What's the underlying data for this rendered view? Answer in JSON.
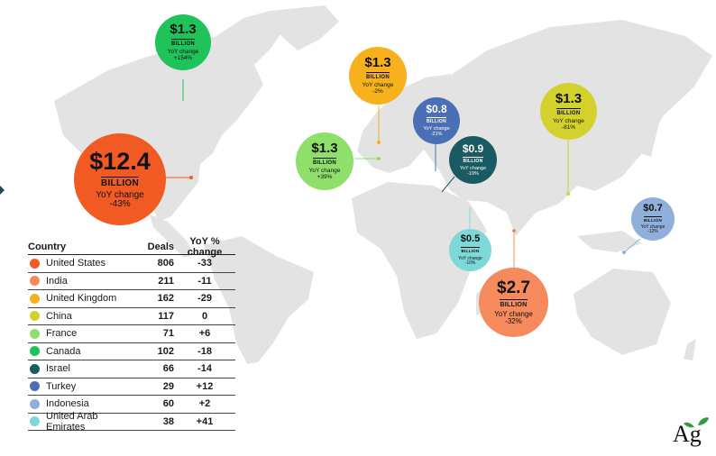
{
  "chart_data": {
    "type": "table",
    "columns": [
      "Country",
      "Deals",
      "YoY % change"
    ],
    "rows": [
      {
        "country": "United States",
        "deals": "806",
        "yoy": "-33",
        "color": "#f15a22"
      },
      {
        "country": "India",
        "deals": "211",
        "yoy": "-11",
        "color": "#f58a5c"
      },
      {
        "country": "United Kingdom",
        "deals": "162",
        "yoy": "-29",
        "color": "#f7b11d"
      },
      {
        "country": "China",
        "deals": "117",
        "yoy": "0",
        "color": "#d3d22d"
      },
      {
        "country": "France",
        "deals": "71",
        "yoy": "+6",
        "color": "#8ee06b"
      },
      {
        "country": "Canada",
        "deals": "102",
        "yoy": "-18",
        "color": "#1fc35a"
      },
      {
        "country": "Israel",
        "deals": "66",
        "yoy": "-14",
        "color": "#1a5a62"
      },
      {
        "country": "Turkey",
        "deals": "29",
        "yoy": "+12",
        "color": "#4a6fb5"
      },
      {
        "country": "Indonesia",
        "deals": "60",
        "yoy": "+2",
        "color": "#8fb0da"
      },
      {
        "country": "United Arab Emirates",
        "deals": "38",
        "yoy": "+41",
        "color": "#7fd8d8"
      }
    ],
    "bubbles": [
      {
        "country": "United States",
        "amount": "$12.4",
        "unit": "BILLION",
        "label": "YoY change",
        "change": "-43%"
      },
      {
        "country": "Canada",
        "amount": "$1.3",
        "unit": "BILLION",
        "label": "YoY change",
        "change": "+154%"
      },
      {
        "country": "France",
        "amount": "$1.3",
        "unit": "BILLION",
        "label": "YoY change",
        "change": "+39%"
      },
      {
        "country": "United Kingdom",
        "amount": "$1.3",
        "unit": "BILLION",
        "label": "YoY change",
        "change": "-2%"
      },
      {
        "country": "Turkey",
        "amount": "$0.8",
        "unit": "BILLION",
        "label": "YoY change",
        "change": "-21%"
      },
      {
        "country": "Israel",
        "amount": "$0.9",
        "unit": "BILLION",
        "label": "YoY change",
        "change": "-19%"
      },
      {
        "country": "China",
        "amount": "$1.3",
        "unit": "BILLION",
        "label": "YoY change",
        "change": "-81%"
      },
      {
        "country": "United Arab Emirates",
        "amount": "$0.5",
        "unit": "BILLION",
        "label": "YoY change",
        "change": "-10%"
      },
      {
        "country": "India",
        "amount": "$2.7",
        "unit": "BILLION",
        "label": "YoY change",
        "change": "-32%"
      },
      {
        "country": "Indonesia",
        "amount": "$0.7",
        "unit": "BILLION",
        "label": "YoY change",
        "change": "-12%"
      }
    ]
  },
  "logo": {
    "text": "Ag",
    "leaf_color": "#2e9e3e"
  }
}
